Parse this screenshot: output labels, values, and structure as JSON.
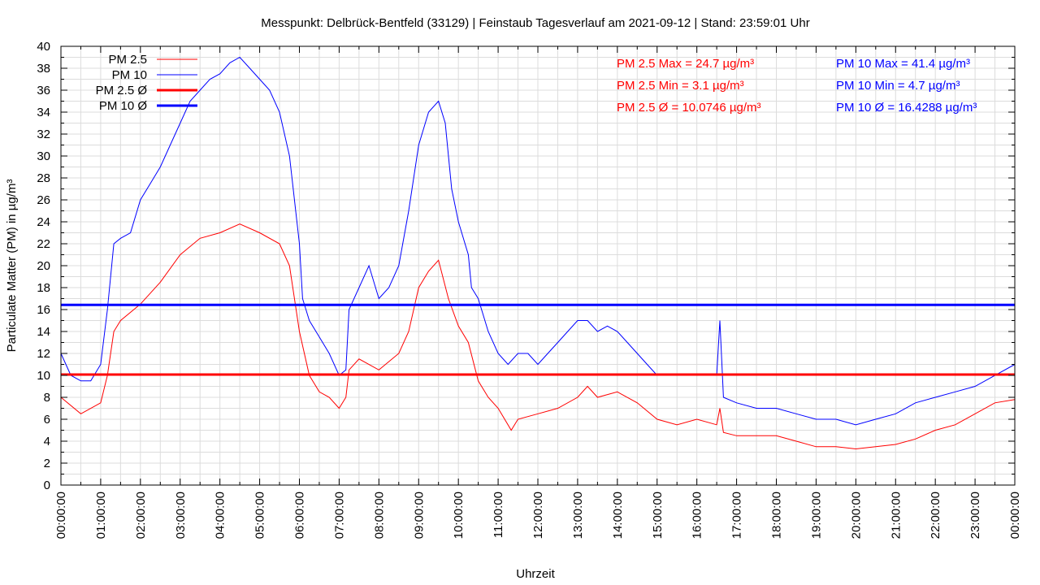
{
  "chart_data": {
    "type": "line",
    "title": "Messpunkt: Delbrück-Bentfeld (33129) | Feinstaub Tagesverlauf am 2021-09-12 | Stand: 23:59:01 Uhr",
    "xlabel": "Uhrzeit",
    "ylabel": "Particulate Matter (PM) in µg/m³",
    "xlim_hours": [
      0,
      24
    ],
    "ylim": [
      0,
      40
    ],
    "grid": true,
    "legend_position": "top-left",
    "x_tick_labels": [
      "00:00:00",
      "01:00:00",
      "02:00:00",
      "03:00:00",
      "04:00:00",
      "05:00:00",
      "06:00:00",
      "07:00:00",
      "08:00:00",
      "09:00:00",
      "10:00:00",
      "11:00:00",
      "12:00:00",
      "13:00:00",
      "14:00:00",
      "15:00:00",
      "16:00:00",
      "17:00:00",
      "18:00:00",
      "19:00:00",
      "20:00:00",
      "21:00:00",
      "22:00:00",
      "23:00:00",
      "00:00:00"
    ],
    "y_tick_labels": [
      "0",
      "2",
      "4",
      "6",
      "8",
      "10",
      "12",
      "14",
      "16",
      "18",
      "20",
      "22",
      "24",
      "26",
      "28",
      "30",
      "32",
      "34",
      "36",
      "38",
      "40"
    ],
    "series": [
      {
        "name": "PM 2.5",
        "color": "#ff0000",
        "x": [
          0,
          0.5,
          1,
          1.17,
          1.33,
          1.5,
          2,
          2.5,
          3,
          3.5,
          4,
          4.5,
          5,
          5.5,
          5.75,
          6,
          6.25,
          6.5,
          6.75,
          7,
          7.17,
          7.25,
          7.5,
          8,
          8.5,
          8.75,
          9,
          9.25,
          9.5,
          9.75,
          10,
          10.25,
          10.5,
          10.75,
          11,
          11.33,
          11.5,
          12,
          12.5,
          13,
          13.25,
          13.5,
          14,
          14.5,
          15,
          15.5,
          16,
          16.5,
          16.58,
          16.67,
          17,
          17.5,
          18,
          18.5,
          19,
          19.5,
          20,
          20.5,
          21,
          21.5,
          22,
          22.5,
          23,
          23.5,
          24
        ],
        "y": [
          8,
          6.5,
          7.5,
          10,
          14,
          15,
          16.5,
          18.5,
          21,
          22.5,
          23,
          23.8,
          23,
          22,
          20,
          14,
          10,
          8.5,
          8,
          7,
          8,
          10.5,
          11.5,
          10.5,
          12,
          14,
          18,
          19.5,
          20.5,
          17,
          14.5,
          13,
          9.5,
          8,
          7,
          5,
          6,
          6.5,
          7,
          8,
          9,
          8,
          8.5,
          7.5,
          6,
          5.5,
          6,
          5.5,
          7,
          4.8,
          4.5,
          4.5,
          4.5,
          4,
          3.5,
          3.5,
          3.3,
          3.5,
          3.7,
          4.2,
          5,
          5.5,
          6.5,
          7.5,
          7.8
        ]
      },
      {
        "name": "PM 10",
        "color": "#0000ff",
        "x": [
          0,
          0.25,
          0.5,
          0.75,
          1,
          1.17,
          1.33,
          1.5,
          1.75,
          2,
          2.25,
          2.5,
          2.75,
          3,
          3.25,
          3.5,
          3.75,
          4,
          4.25,
          4.5,
          4.75,
          5,
          5.25,
          5.5,
          5.75,
          6,
          6.08,
          6.25,
          6.5,
          6.75,
          7,
          7.17,
          7.25,
          7.5,
          7.75,
          8,
          8.25,
          8.5,
          8.75,
          9,
          9.25,
          9.5,
          9.67,
          9.83,
          10,
          10.25,
          10.33,
          10.5,
          10.75,
          11,
          11.25,
          11.5,
          11.75,
          12,
          12.25,
          12.5,
          12.75,
          13,
          13.25,
          13.5,
          13.75,
          14,
          14.25,
          14.5,
          14.75,
          15,
          15.5,
          16,
          16.5,
          16.58,
          16.67,
          17,
          17.5,
          18,
          18.5,
          19,
          19.5,
          20,
          20.5,
          21,
          21.5,
          22,
          22.5,
          23,
          23.5,
          24
        ],
        "y": [
          12,
          10,
          9.5,
          9.5,
          11,
          16,
          22,
          22.5,
          23,
          26,
          27.5,
          29,
          31,
          33,
          35,
          36,
          37,
          37.5,
          38.5,
          39,
          38,
          37,
          36,
          34,
          30,
          22,
          17,
          15,
          13.5,
          12,
          10,
          10.5,
          16,
          18,
          20,
          17,
          18,
          20,
          25,
          31,
          34,
          35,
          33,
          27,
          24,
          21,
          18,
          17,
          14,
          12,
          11,
          12,
          12,
          11,
          12,
          13,
          14,
          15,
          15,
          14,
          14.5,
          14,
          13,
          12,
          11,
          10,
          10,
          10,
          10,
          15,
          8,
          7.5,
          7,
          7,
          6.5,
          6,
          6,
          5.5,
          6,
          6.5,
          7.5,
          8,
          8.5,
          9,
          10,
          11
        ]
      },
      {
        "name": "PM 2.5 Ø",
        "color": "#ff0000",
        "value": 10.0746
      },
      {
        "name": "PM 10 Ø",
        "color": "#0000ff",
        "value": 16.4288
      }
    ],
    "annotations": {
      "pm25": [
        "PM 2.5 Max = 24.7 µg/m³",
        "PM 2.5 Min = 3.1 µg/m³",
        "PM 2.5 Ø = 10.0746 µg/m³"
      ],
      "pm10": [
        "PM 10 Max = 41.4 µg/m³",
        "PM 10 Min = 4.7 µg/m³",
        "PM 10 Ø = 16.4288 µg/m³"
      ]
    }
  }
}
